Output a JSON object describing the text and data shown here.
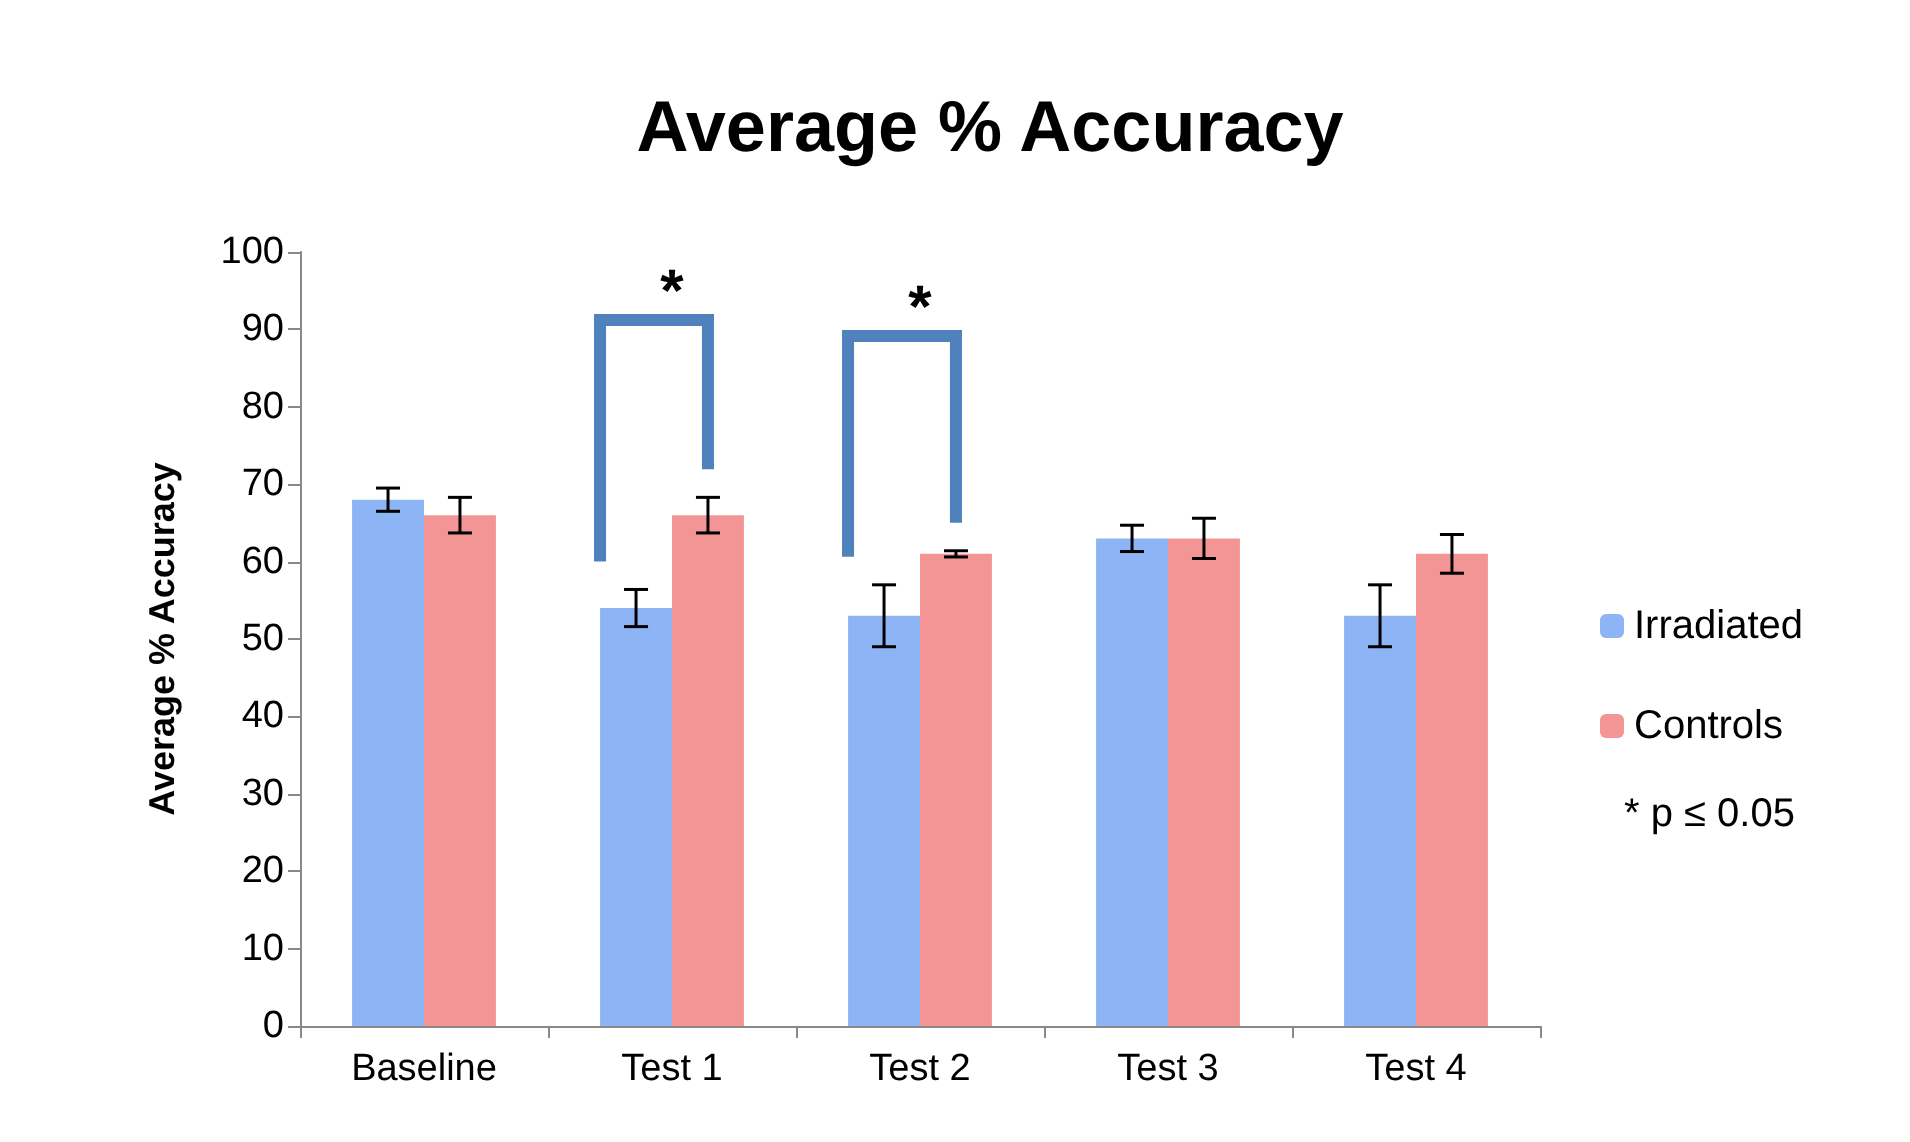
{
  "chart_data": {
    "type": "bar",
    "title": "Average % Accuracy",
    "ylabel": "Average % Accuracy",
    "categories": [
      "Baseline",
      "Test 1",
      "Test 2",
      "Test 3",
      "Test 4"
    ],
    "series": [
      {
        "name": "Irradiated",
        "color": "#8db4f5",
        "values": [
          68,
          54,
          53,
          63,
          53
        ],
        "errors": [
          1.5,
          2.4,
          4,
          1.7,
          4
        ]
      },
      {
        "name": "Controls",
        "color": "#f49595",
        "values": [
          66,
          66,
          61,
          63,
          61
        ],
        "errors": [
          2.3,
          2.3,
          0.4,
          2.6,
          2.5
        ]
      }
    ],
    "ylim": [
      0,
      100
    ],
    "yticks": [
      0,
      10,
      20,
      30,
      40,
      50,
      60,
      70,
      80,
      90,
      100
    ],
    "grid": false,
    "legend": "right",
    "annotations": [
      "*",
      "*",
      "* p ≤ 0.05"
    ]
  }
}
